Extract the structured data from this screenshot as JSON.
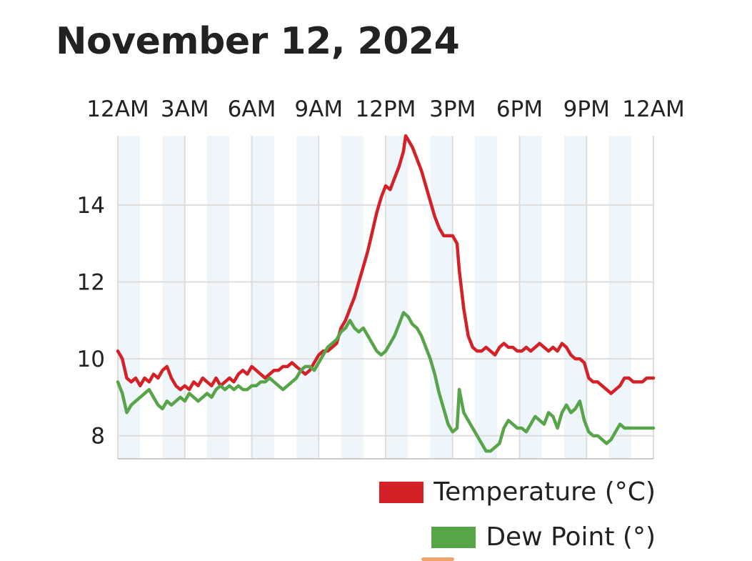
{
  "page": {
    "title": "November 12, 2024"
  },
  "colors": {
    "temperature": "#d42027",
    "dew_point": "#58a449",
    "band": "#eef5fb",
    "grid": "#dddddd"
  },
  "chart_data": {
    "type": "line",
    "title": "November 12, 2024",
    "x_ticks": [
      "12AM",
      "3AM",
      "6AM",
      "9AM",
      "12PM",
      "3PM",
      "6PM",
      "9PM",
      "12AM"
    ],
    "x_tick_hours": [
      0,
      3,
      6,
      9,
      12,
      15,
      18,
      21,
      24
    ],
    "x_range": [
      0,
      24
    ],
    "y_ticks": [
      8,
      10,
      12,
      14
    ],
    "ylim": [
      7.4,
      15.8
    ],
    "grid": true,
    "legend_position": "bottom-right",
    "series": [
      {
        "name": "Temperature (°C)",
        "key": "temperature",
        "points": [
          [
            0.0,
            10.2
          ],
          [
            0.2,
            10.0
          ],
          [
            0.4,
            9.5
          ],
          [
            0.6,
            9.4
          ],
          [
            0.8,
            9.5
          ],
          [
            1.0,
            9.3
          ],
          [
            1.2,
            9.5
          ],
          [
            1.4,
            9.4
          ],
          [
            1.6,
            9.6
          ],
          [
            1.8,
            9.5
          ],
          [
            2.0,
            9.7
          ],
          [
            2.2,
            9.8
          ],
          [
            2.4,
            9.5
          ],
          [
            2.6,
            9.3
          ],
          [
            2.8,
            9.2
          ],
          [
            3.0,
            9.3
          ],
          [
            3.2,
            9.2
          ],
          [
            3.4,
            9.4
          ],
          [
            3.6,
            9.3
          ],
          [
            3.8,
            9.5
          ],
          [
            4.0,
            9.4
          ],
          [
            4.2,
            9.3
          ],
          [
            4.4,
            9.5
          ],
          [
            4.6,
            9.3
          ],
          [
            4.8,
            9.4
          ],
          [
            5.0,
            9.5
          ],
          [
            5.2,
            9.4
          ],
          [
            5.4,
            9.6
          ],
          [
            5.6,
            9.7
          ],
          [
            5.8,
            9.6
          ],
          [
            6.0,
            9.8
          ],
          [
            6.2,
            9.7
          ],
          [
            6.4,
            9.6
          ],
          [
            6.6,
            9.5
          ],
          [
            6.8,
            9.6
          ],
          [
            7.0,
            9.7
          ],
          [
            7.2,
            9.7
          ],
          [
            7.4,
            9.8
          ],
          [
            7.6,
            9.8
          ],
          [
            7.8,
            9.9
          ],
          [
            8.0,
            9.8
          ],
          [
            8.2,
            9.7
          ],
          [
            8.4,
            9.6
          ],
          [
            8.6,
            9.7
          ],
          [
            8.8,
            9.9
          ],
          [
            9.0,
            10.1
          ],
          [
            9.2,
            10.2
          ],
          [
            9.4,
            10.2
          ],
          [
            9.6,
            10.3
          ],
          [
            9.8,
            10.4
          ],
          [
            10.0,
            10.8
          ],
          [
            10.2,
            11.0
          ],
          [
            10.4,
            11.3
          ],
          [
            10.6,
            11.6
          ],
          [
            10.8,
            12.0
          ],
          [
            11.0,
            12.4
          ],
          [
            11.2,
            12.8
          ],
          [
            11.4,
            13.3
          ],
          [
            11.6,
            13.8
          ],
          [
            11.8,
            14.2
          ],
          [
            12.0,
            14.5
          ],
          [
            12.2,
            14.4
          ],
          [
            12.4,
            14.7
          ],
          [
            12.6,
            15.0
          ],
          [
            12.8,
            15.4
          ],
          [
            12.9,
            15.8
          ],
          [
            13.0,
            15.7
          ],
          [
            13.2,
            15.5
          ],
          [
            13.4,
            15.2
          ],
          [
            13.6,
            14.9
          ],
          [
            13.8,
            14.5
          ],
          [
            14.0,
            14.1
          ],
          [
            14.2,
            13.7
          ],
          [
            14.4,
            13.4
          ],
          [
            14.6,
            13.2
          ],
          [
            14.8,
            13.2
          ],
          [
            15.0,
            13.2
          ],
          [
            15.2,
            13.0
          ],
          [
            15.3,
            12.3
          ],
          [
            15.5,
            11.3
          ],
          [
            15.7,
            10.6
          ],
          [
            15.9,
            10.3
          ],
          [
            16.1,
            10.2
          ],
          [
            16.3,
            10.2
          ],
          [
            16.5,
            10.3
          ],
          [
            16.7,
            10.2
          ],
          [
            16.9,
            10.1
          ],
          [
            17.1,
            10.3
          ],
          [
            17.3,
            10.4
          ],
          [
            17.5,
            10.3
          ],
          [
            17.7,
            10.3
          ],
          [
            17.9,
            10.2
          ],
          [
            18.1,
            10.2
          ],
          [
            18.3,
            10.3
          ],
          [
            18.5,
            10.2
          ],
          [
            18.7,
            10.3
          ],
          [
            18.9,
            10.4
          ],
          [
            19.1,
            10.3
          ],
          [
            19.3,
            10.2
          ],
          [
            19.5,
            10.3
          ],
          [
            19.7,
            10.2
          ],
          [
            19.9,
            10.4
          ],
          [
            20.1,
            10.3
          ],
          [
            20.3,
            10.1
          ],
          [
            20.5,
            10.0
          ],
          [
            20.7,
            10.0
          ],
          [
            20.9,
            9.9
          ],
          [
            21.1,
            9.5
          ],
          [
            21.3,
            9.4
          ],
          [
            21.5,
            9.4
          ],
          [
            21.7,
            9.3
          ],
          [
            21.9,
            9.2
          ],
          [
            22.1,
            9.1
          ],
          [
            22.3,
            9.2
          ],
          [
            22.5,
            9.3
          ],
          [
            22.7,
            9.5
          ],
          [
            22.9,
            9.5
          ],
          [
            23.1,
            9.4
          ],
          [
            23.3,
            9.4
          ],
          [
            23.5,
            9.4
          ],
          [
            23.7,
            9.5
          ],
          [
            23.9,
            9.5
          ],
          [
            24.0,
            9.5
          ]
        ]
      },
      {
        "name": "Dew Point (°)",
        "key": "dew_point",
        "points": [
          [
            0.0,
            9.4
          ],
          [
            0.2,
            9.1
          ],
          [
            0.4,
            8.6
          ],
          [
            0.6,
            8.8
          ],
          [
            0.8,
            8.9
          ],
          [
            1.0,
            9.0
          ],
          [
            1.2,
            9.1
          ],
          [
            1.4,
            9.2
          ],
          [
            1.6,
            9.0
          ],
          [
            1.8,
            8.8
          ],
          [
            2.0,
            8.7
          ],
          [
            2.2,
            8.9
          ],
          [
            2.4,
            8.8
          ],
          [
            2.6,
            8.9
          ],
          [
            2.8,
            9.0
          ],
          [
            3.0,
            8.9
          ],
          [
            3.2,
            9.1
          ],
          [
            3.4,
            9.0
          ],
          [
            3.6,
            8.9
          ],
          [
            3.8,
            9.0
          ],
          [
            4.0,
            9.1
          ],
          [
            4.2,
            9.0
          ],
          [
            4.4,
            9.2
          ],
          [
            4.6,
            9.3
          ],
          [
            4.8,
            9.2
          ],
          [
            5.0,
            9.3
          ],
          [
            5.2,
            9.2
          ],
          [
            5.4,
            9.3
          ],
          [
            5.6,
            9.2
          ],
          [
            5.8,
            9.2
          ],
          [
            6.0,
            9.3
          ],
          [
            6.2,
            9.3
          ],
          [
            6.4,
            9.4
          ],
          [
            6.6,
            9.4
          ],
          [
            6.8,
            9.5
          ],
          [
            7.0,
            9.4
          ],
          [
            7.2,
            9.3
          ],
          [
            7.4,
            9.2
          ],
          [
            7.6,
            9.3
          ],
          [
            7.8,
            9.4
          ],
          [
            8.0,
            9.5
          ],
          [
            8.2,
            9.7
          ],
          [
            8.4,
            9.8
          ],
          [
            8.6,
            9.8
          ],
          [
            8.8,
            9.7
          ],
          [
            9.0,
            9.9
          ],
          [
            9.2,
            10.1
          ],
          [
            9.4,
            10.3
          ],
          [
            9.6,
            10.4
          ],
          [
            9.8,
            10.5
          ],
          [
            10.0,
            10.7
          ],
          [
            10.2,
            10.8
          ],
          [
            10.4,
            11.0
          ],
          [
            10.6,
            10.8
          ],
          [
            10.8,
            10.7
          ],
          [
            11.0,
            10.8
          ],
          [
            11.2,
            10.6
          ],
          [
            11.4,
            10.4
          ],
          [
            11.6,
            10.2
          ],
          [
            11.8,
            10.1
          ],
          [
            12.0,
            10.2
          ],
          [
            12.2,
            10.4
          ],
          [
            12.4,
            10.6
          ],
          [
            12.6,
            10.9
          ],
          [
            12.8,
            11.2
          ],
          [
            13.0,
            11.1
          ],
          [
            13.2,
            10.9
          ],
          [
            13.4,
            10.8
          ],
          [
            13.6,
            10.6
          ],
          [
            13.8,
            10.3
          ],
          [
            14.0,
            10.0
          ],
          [
            14.2,
            9.6
          ],
          [
            14.4,
            9.1
          ],
          [
            14.6,
            8.7
          ],
          [
            14.8,
            8.3
          ],
          [
            15.0,
            8.1
          ],
          [
            15.2,
            8.2
          ],
          [
            15.3,
            9.2
          ],
          [
            15.5,
            8.6
          ],
          [
            15.7,
            8.4
          ],
          [
            15.9,
            8.2
          ],
          [
            16.1,
            8.0
          ],
          [
            16.3,
            7.8
          ],
          [
            16.5,
            7.6
          ],
          [
            16.7,
            7.6
          ],
          [
            16.9,
            7.7
          ],
          [
            17.1,
            7.8
          ],
          [
            17.3,
            8.2
          ],
          [
            17.5,
            8.4
          ],
          [
            17.7,
            8.3
          ],
          [
            17.9,
            8.2
          ],
          [
            18.1,
            8.2
          ],
          [
            18.3,
            8.1
          ],
          [
            18.5,
            8.3
          ],
          [
            18.7,
            8.5
          ],
          [
            18.9,
            8.4
          ],
          [
            19.1,
            8.3
          ],
          [
            19.3,
            8.6
          ],
          [
            19.5,
            8.5
          ],
          [
            19.7,
            8.2
          ],
          [
            19.9,
            8.6
          ],
          [
            20.1,
            8.8
          ],
          [
            20.3,
            8.6
          ],
          [
            20.5,
            8.7
          ],
          [
            20.7,
            8.9
          ],
          [
            20.9,
            8.4
          ],
          [
            21.1,
            8.1
          ],
          [
            21.3,
            8.0
          ],
          [
            21.5,
            8.0
          ],
          [
            21.7,
            7.9
          ],
          [
            21.9,
            7.8
          ],
          [
            22.1,
            7.9
          ],
          [
            22.3,
            8.1
          ],
          [
            22.5,
            8.3
          ],
          [
            22.7,
            8.2
          ],
          [
            22.9,
            8.2
          ],
          [
            23.1,
            8.2
          ],
          [
            23.3,
            8.2
          ],
          [
            23.5,
            8.2
          ],
          [
            23.7,
            8.2
          ],
          [
            24.0,
            8.2
          ]
        ]
      }
    ]
  }
}
